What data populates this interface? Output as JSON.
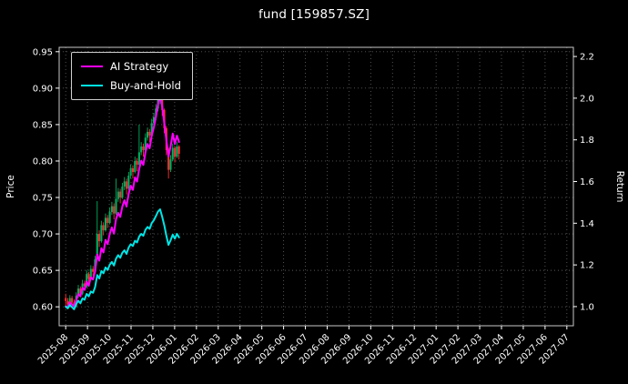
{
  "chart_data": {
    "type": "candlestick_with_lines",
    "title": "fund [159857.SZ]",
    "background": "#000000",
    "text_color": "#ffffff",
    "grid_color": "#5a5a5a",
    "spine_color": "#c8c8c8",
    "axes": {
      "left": {
        "label": "Price",
        "ticks": [
          0.6,
          0.65,
          0.7,
          0.75,
          0.8,
          0.85,
          0.9,
          0.95
        ],
        "tick_labels": [
          "0.60",
          "0.65",
          "0.70",
          "0.75",
          "0.80",
          "0.85",
          "0.90",
          "0.95"
        ],
        "range": [
          0.574,
          0.956
        ]
      },
      "right": {
        "label": "Return",
        "ticks": [
          1.0,
          1.2,
          1.4,
          1.6,
          1.8,
          2.0,
          2.2
        ],
        "tick_labels": [
          "1.0",
          "1.2",
          "1.4",
          "1.6",
          "1.8",
          "2.0",
          "2.2"
        ],
        "range": [
          0.908,
          2.244
        ]
      },
      "x": {
        "tick_labels": [
          "2025-08",
          "2025-09",
          "2025-10",
          "2025-11",
          "2025-12",
          "2026-01",
          "2026-02",
          "2026-03",
          "2026-04",
          "2026-05",
          "2026-06",
          "2026-07",
          "2026-08",
          "2026-09",
          "2026-10",
          "2026-11",
          "2026-12",
          "2027-01",
          "2027-02",
          "2027-03",
          "2027-04",
          "2027-05",
          "2027-06",
          "2027-07"
        ],
        "range_months": [
          -0.3,
          23.3
        ],
        "data_start_month": 0.0,
        "data_end_month": 5.2
      }
    },
    "legend": [
      {
        "label": "AI Strategy",
        "color": "#ff00ff"
      },
      {
        "label": "Buy-and-Hold",
        "color": "#00e5e5"
      }
    ],
    "candles": {
      "up_color": "#00b060",
      "down_color": "#fe3032",
      "open": [
        0.612,
        0.608,
        0.603,
        0.612,
        0.606,
        0.6,
        0.615,
        0.625,
        0.618,
        0.632,
        0.628,
        0.645,
        0.638,
        0.652,
        0.648,
        0.665,
        0.7,
        0.69,
        0.712,
        0.705,
        0.722,
        0.715,
        0.73,
        0.738,
        0.728,
        0.748,
        0.758,
        0.75,
        0.765,
        0.772,
        0.762,
        0.78,
        0.79,
        0.785,
        0.8,
        0.795,
        0.812,
        0.82,
        0.815,
        0.832,
        0.84,
        0.835,
        0.852,
        0.86,
        0.872,
        0.885,
        0.892,
        0.87,
        0.845,
        0.815,
        0.788,
        0.802,
        0.818,
        0.806,
        0.82
      ],
      "high": [
        0.618,
        0.612,
        0.616,
        0.615,
        0.61,
        0.62,
        0.63,
        0.628,
        0.637,
        0.636,
        0.65,
        0.648,
        0.657,
        0.656,
        0.67,
        0.745,
        0.705,
        0.718,
        0.716,
        0.728,
        0.726,
        0.736,
        0.744,
        0.742,
        0.776,
        0.763,
        0.762,
        0.77,
        0.778,
        0.776,
        0.785,
        0.795,
        0.794,
        0.806,
        0.804,
        0.85,
        0.826,
        0.824,
        0.838,
        0.846,
        0.844,
        0.858,
        0.866,
        0.878,
        0.902,
        0.898,
        0.894,
        0.872,
        0.848,
        0.818,
        0.808,
        0.824,
        0.82,
        0.826,
        0.822
      ],
      "low": [
        0.598,
        0.599,
        0.601,
        0.602,
        0.596,
        0.599,
        0.612,
        0.613,
        0.616,
        0.622,
        0.626,
        0.633,
        0.636,
        0.642,
        0.646,
        0.663,
        0.682,
        0.688,
        0.698,
        0.703,
        0.708,
        0.713,
        0.726,
        0.72,
        0.726,
        0.744,
        0.742,
        0.748,
        0.76,
        0.754,
        0.76,
        0.776,
        0.776,
        0.783,
        0.786,
        0.793,
        0.808,
        0.806,
        0.813,
        0.828,
        0.826,
        0.833,
        0.848,
        0.856,
        0.868,
        0.878,
        0.862,
        0.838,
        0.808,
        0.776,
        0.785,
        0.8,
        0.798,
        0.804,
        0.802
      ],
      "close": [
        0.608,
        0.603,
        0.612,
        0.606,
        0.6,
        0.615,
        0.625,
        0.618,
        0.632,
        0.628,
        0.645,
        0.638,
        0.652,
        0.648,
        0.665,
        0.7,
        0.69,
        0.712,
        0.705,
        0.722,
        0.715,
        0.73,
        0.738,
        0.728,
        0.748,
        0.758,
        0.75,
        0.765,
        0.772,
        0.762,
        0.78,
        0.79,
        0.785,
        0.8,
        0.795,
        0.812,
        0.82,
        0.815,
        0.832,
        0.84,
        0.835,
        0.852,
        0.86,
        0.872,
        0.885,
        0.892,
        0.87,
        0.845,
        0.815,
        0.788,
        0.802,
        0.818,
        0.806,
        0.82,
        0.81
      ]
    },
    "series": [
      {
        "name": "AI Strategy",
        "axis": "right",
        "color": "#ff00ff",
        "values": [
          1.0,
          1.0,
          1.02,
          1.01,
          1.0,
          1.03,
          1.06,
          1.05,
          1.09,
          1.08,
          1.12,
          1.1,
          1.14,
          1.13,
          1.17,
          1.25,
          1.22,
          1.28,
          1.26,
          1.32,
          1.3,
          1.35,
          1.38,
          1.35,
          1.42,
          1.45,
          1.43,
          1.48,
          1.51,
          1.48,
          1.54,
          1.58,
          1.56,
          1.62,
          1.6,
          1.66,
          1.7,
          1.68,
          1.74,
          1.78,
          1.76,
          1.82,
          1.86,
          1.91,
          1.97,
          2.02,
          1.96,
          1.88,
          1.8,
          1.72,
          1.77,
          1.83,
          1.78,
          1.82,
          1.79
        ]
      },
      {
        "name": "Buy-and-Hold",
        "axis": "right",
        "color": "#00e5e5",
        "values": [
          1.0,
          0.992,
          1.007,
          0.997,
          0.987,
          1.012,
          1.028,
          1.016,
          1.039,
          1.033,
          1.061,
          1.049,
          1.072,
          1.066,
          1.094,
          1.151,
          1.135,
          1.171,
          1.16,
          1.188,
          1.176,
          1.201,
          1.214,
          1.197,
          1.23,
          1.247,
          1.234,
          1.258,
          1.27,
          1.253,
          1.283,
          1.299,
          1.291,
          1.316,
          1.308,
          1.336,
          1.349,
          1.34,
          1.368,
          1.382,
          1.373,
          1.401,
          1.414,
          1.434,
          1.456,
          1.467,
          1.431,
          1.39,
          1.34,
          1.296,
          1.319,
          1.345,
          1.326,
          1.349,
          1.332
        ]
      }
    ]
  }
}
